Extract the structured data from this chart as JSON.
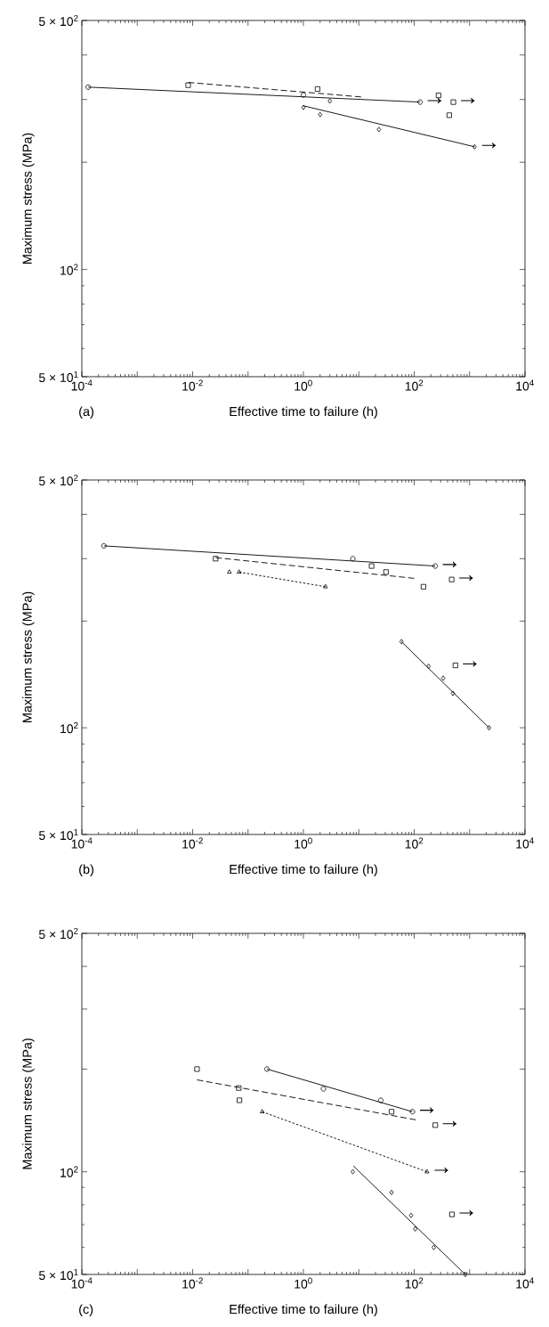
{
  "chart_data": [
    {
      "type": "scatter",
      "xlabel": "Effective time to failure (h)",
      "ylabel": "Maximum stress (MPa)",
      "log": "xy",
      "xlim": [
        0.0001,
        10000
      ],
      "ylim": [
        50,
        500
      ],
      "xticks": [
        {
          "value": 0.0001,
          "label": "10$^{-4}$"
        },
        {
          "value": 0.001,
          "label": null
        },
        {
          "value": 0.01,
          "label": "10$^{-2}$"
        },
        {
          "value": 0.1,
          "label": null
        },
        {
          "value": 1,
          "label": "10$^{0}$"
        },
        {
          "value": 10,
          "label": null
        },
        {
          "value": 100,
          "label": "10$^{2}$"
        },
        {
          "value": 1000,
          "label": null
        },
        {
          "value": 10000,
          "label": "10$^{4}$"
        }
      ],
      "yticks": [
        {
          "value": 50,
          "label": "5 × 10$^{1}$"
        },
        {
          "value": 100,
          "label": "10$^{2}$"
        },
        {
          "value": 200,
          "label": null
        },
        {
          "value": 300,
          "label": null
        },
        {
          "value": 400,
          "label": null
        },
        {
          "value": 500,
          "label": "5 × 10$^{2}$"
        }
      ],
      "annotations": [
        "(a)",
        {
          "text": "→",
          "x": 128,
          "y": 295
        },
        {
          "text": "→",
          "x": 510,
          "y": 295
        },
        {
          "text": "→",
          "x": 1230,
          "y": 221
        }
      ],
      "series": [
        {
          "marker": "circle",
          "color": "#000000",
          "x": [
            0.00013,
            1.0,
            128
          ],
          "values": [
            325,
            309,
            295
          ]
        },
        {
          "marker": "square",
          "color": "#000000",
          "x": [
            0.0083,
            1.8,
            275,
            510,
            430
          ],
          "values": [
            329,
            321,
            308,
            295,
            271
          ]
        },
        {
          "marker": "diamond",
          "color": "#000000",
          "x": [
            1.0,
            2.0,
            3.0,
            23,
            1230
          ],
          "values": [
            285,
            272,
            297,
            247,
            221
          ]
        },
        {
          "type": "line",
          "marker": "none",
          "line_style": "solid",
          "color": "#000000",
          "x": [
            0.00013,
            128
          ],
          "values": [
            325,
            295
          ]
        },
        {
          "type": "line",
          "marker": "none",
          "line_style": "dashed",
          "color": "#000000",
          "x": [
            0.0083,
            11
          ],
          "values": [
            335,
            305
          ]
        },
        {
          "type": "line",
          "marker": "none",
          "line_style": "solid",
          "color": "#000000",
          "x": [
            1.0,
            1230
          ],
          "values": [
            288,
            221
          ]
        }
      ]
    },
    {
      "type": "scatter",
      "xlabel": "Effective time to failure (h)",
      "ylabel": "Maximum stress (MPa)",
      "log": "xy",
      "xlim": [
        0.0001,
        10000
      ],
      "ylim": [
        50,
        500
      ],
      "xticks": [
        {
          "value": 0.0001,
          "label": "10$^{-4}$"
        },
        {
          "value": 0.001,
          "label": null
        },
        {
          "value": 0.01,
          "label": "10$^{-2}$"
        },
        {
          "value": 0.1,
          "label": null
        },
        {
          "value": 1,
          "label": "10$^{0}$"
        },
        {
          "value": 10,
          "label": null
        },
        {
          "value": 100,
          "label": "10$^{2}$"
        },
        {
          "value": 1000,
          "label": null
        },
        {
          "value": 10000,
          "label": "10$^{4}$"
        }
      ],
      "yticks": [
        {
          "value": 50,
          "label": "5 × 10$^{1}$"
        },
        {
          "value": 100,
          "label": "10$^{2}$"
        },
        {
          "value": 200,
          "label": null
        },
        {
          "value": 300,
          "label": null
        },
        {
          "value": 400,
          "label": null
        },
        {
          "value": 500,
          "label": "5 × 10$^{2}$"
        }
      ],
      "annotations": [
        "(b)",
        {
          "text": "→",
          "x": 240,
          "y": 286
        },
        {
          "text": "→",
          "x": 475,
          "y": 262
        },
        {
          "text": "→",
          "x": 555,
          "y": 150
        }
      ],
      "series": [
        {
          "marker": "circle",
          "color": "#000000",
          "x": [
            0.00025,
            7.8,
            240
          ],
          "values": [
            326,
            300,
            286
          ]
        },
        {
          "marker": "square",
          "color": "#000000",
          "x": [
            0.026,
            17,
            31,
            147,
            475,
            555
          ],
          "values": [
            300,
            286,
            275,
            250,
            262,
            150
          ]
        },
        {
          "marker": "triangle",
          "color": "#000000",
          "x": [
            0.046,
            0.069,
            2.5
          ],
          "values": [
            275,
            275,
            250
          ]
        },
        {
          "marker": "diamond",
          "color": "#000000",
          "x": [
            59,
            182,
            333,
            500,
            2245
          ],
          "values": [
            175,
            149,
            138,
            125,
            100
          ]
        },
        {
          "type": "line",
          "marker": "none",
          "line_style": "solid",
          "color": "#000000",
          "x": [
            0.00025,
            240
          ],
          "values": [
            326,
            286
          ]
        },
        {
          "type": "line",
          "marker": "none",
          "line_style": "dashed",
          "color": "#000000",
          "x": [
            0.026,
            100
          ],
          "values": [
            302,
            264
          ]
        },
        {
          "type": "line",
          "marker": "none",
          "line_style": "dotted",
          "color": "#000000",
          "x": [
            0.069,
            2.5
          ],
          "values": [
            275,
            250
          ]
        },
        {
          "type": "line",
          "marker": "none",
          "line_style": "solid",
          "color": "#000000",
          "x": [
            59,
            2245
          ],
          "values": [
            175,
            100
          ]
        }
      ]
    },
    {
      "type": "scatter",
      "xlabel": "Effective time to failure (h)",
      "ylabel": "Maximum stress (MPa)",
      "log": "xy",
      "xlim": [
        0.0001,
        10000
      ],
      "ylim": [
        50,
        500
      ],
      "xticks": [
        {
          "value": 0.0001,
          "label": "10$^{-4}$"
        },
        {
          "value": 0.001,
          "label": null
        },
        {
          "value": 0.01,
          "label": "10$^{-2}$"
        },
        {
          "value": 0.1,
          "label": null
        },
        {
          "value": 1,
          "label": "10$^{0}$"
        },
        {
          "value": 10,
          "label": null
        },
        {
          "value": 100,
          "label": "10$^{2}$"
        },
        {
          "value": 1000,
          "label": null
        },
        {
          "value": 10000,
          "label": "10$^{4}$"
        }
      ],
      "yticks": [
        {
          "value": 50,
          "label": "5 × 10$^{1}$"
        },
        {
          "value": 100,
          "label": "10$^{2}$"
        },
        {
          "value": 200,
          "label": null
        },
        {
          "value": 300,
          "label": null
        },
        {
          "value": 400,
          "label": null
        },
        {
          "value": 500,
          "label": "5 × 10$^{2}$"
        }
      ],
      "annotations": [
        "(c)",
        {
          "text": "→",
          "x": 93,
          "y": 150
        },
        {
          "text": "→",
          "x": 240,
          "y": 137
        },
        {
          "text": "→",
          "x": 170,
          "y": 100
        },
        {
          "text": "→",
          "x": 480,
          "y": 75
        }
      ],
      "series": [
        {
          "marker": "circle",
          "color": "#000000",
          "x": [
            0.22,
            2.3,
            25,
            93
          ],
          "values": [
            200,
            175,
            162,
            150
          ]
        },
        {
          "marker": "square",
          "color": "#000000",
          "x": [
            0.012,
            0.068,
            0.07,
            39,
            240,
            480
          ],
          "values": [
            200,
            176,
            162,
            150,
            137,
            75
          ]
        },
        {
          "marker": "triangle",
          "color": "#000000",
          "x": [
            0.18,
            170
          ],
          "values": [
            150,
            100
          ]
        },
        {
          "marker": "diamond",
          "color": "#000000",
          "x": [
            7.8,
            39,
            88,
            104,
            225,
            835
          ],
          "values": [
            100,
            87,
            74.5,
            68,
            60,
            50
          ]
        },
        {
          "type": "line",
          "marker": "none",
          "line_style": "solid",
          "color": "#000000",
          "x": [
            0.22,
            93
          ],
          "values": [
            200,
            150
          ]
        },
        {
          "type": "line",
          "marker": "none",
          "line_style": "dashed",
          "color": "#000000",
          "x": [
            0.012,
            107
          ],
          "values": [
            186,
            142
          ]
        },
        {
          "type": "line",
          "marker": "none",
          "line_style": "dotted",
          "color": "#000000",
          "x": [
            0.18,
            170
          ],
          "values": [
            150,
            100
          ]
        },
        {
          "type": "line",
          "marker": "none",
          "line_style": "solid",
          "color": "#000000",
          "x": [
            8,
            835
          ],
          "values": [
            104,
            50
          ]
        }
      ]
    }
  ]
}
